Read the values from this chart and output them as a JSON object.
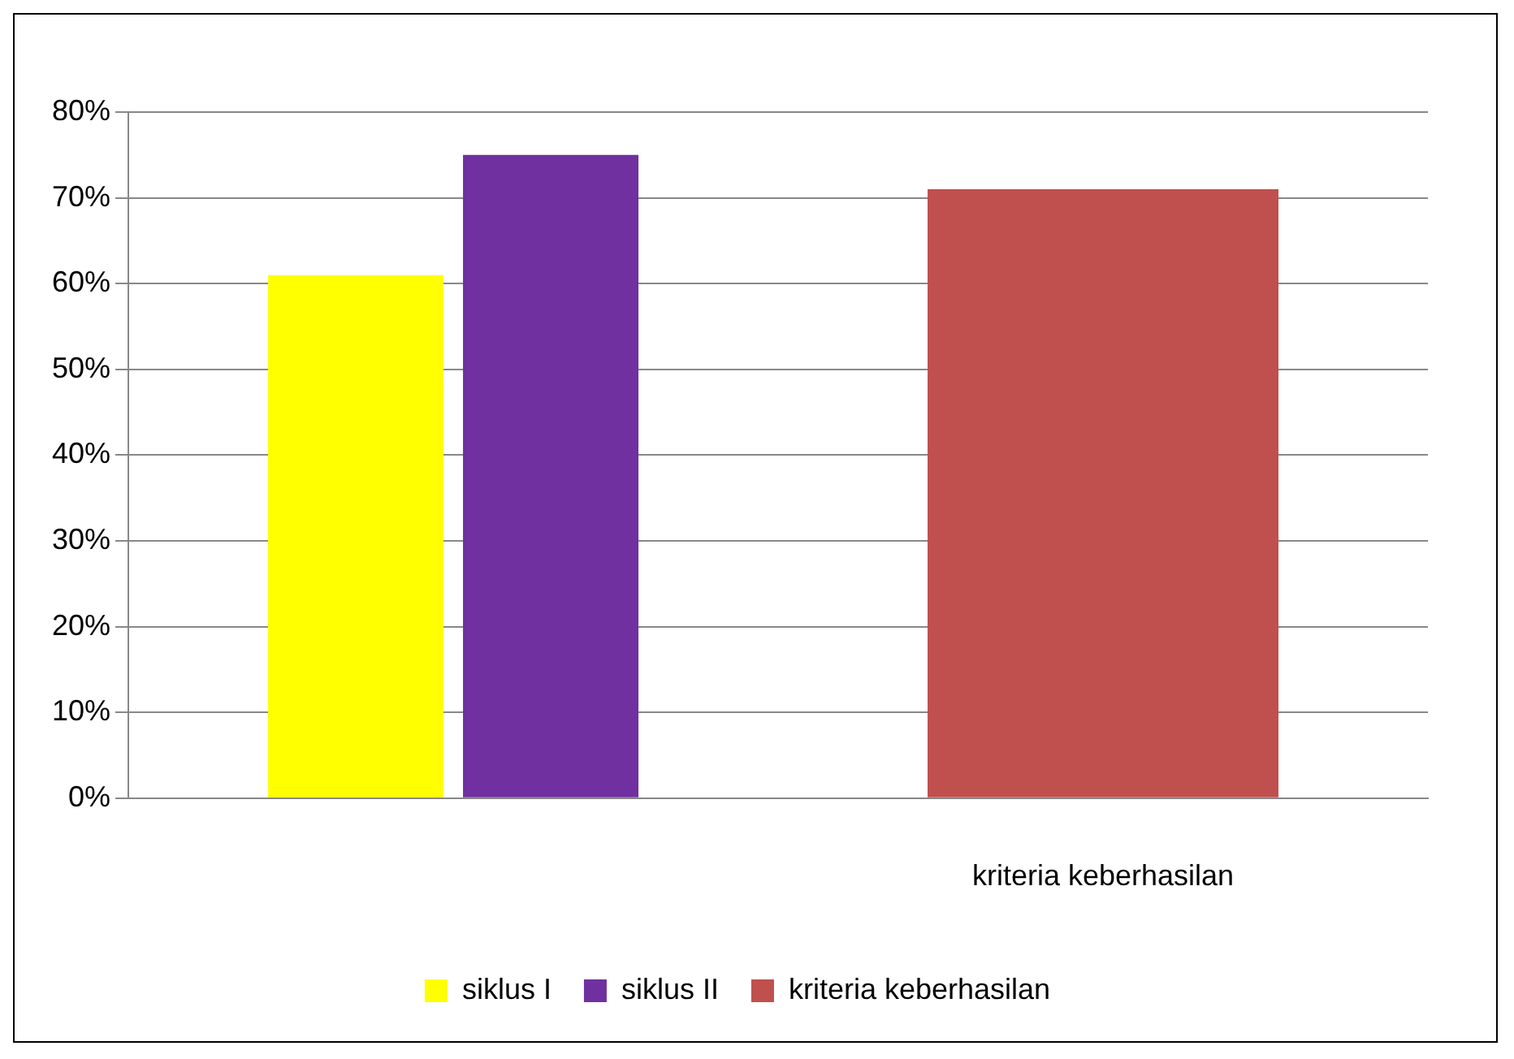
{
  "chart_data": {
    "type": "bar",
    "categories": [
      null,
      "kriteria keberhasilan"
    ],
    "series": [
      {
        "name": "siklus I",
        "color": "#ffff00",
        "values": [
          61,
          null
        ]
      },
      {
        "name": "siklus II",
        "color": "#7030a0",
        "values": [
          75,
          null
        ]
      },
      {
        "name": "kriteria keberhasilan",
        "color": "#c0504d",
        "values": [
          null,
          71
        ]
      }
    ],
    "ylim": [
      0,
      80
    ],
    "yticks": [
      {
        "value": 0,
        "label": "0%"
      },
      {
        "value": 10,
        "label": "10%"
      },
      {
        "value": 20,
        "label": "20%"
      },
      {
        "value": 30,
        "label": "30%"
      },
      {
        "value": 40,
        "label": "40%"
      },
      {
        "value": 50,
        "label": "50%"
      },
      {
        "value": 60,
        "label": "60%"
      },
      {
        "value": 70,
        "label": "70%"
      },
      {
        "value": 80,
        "label": "80%"
      }
    ],
    "grid": "y",
    "legend": "bottom"
  }
}
